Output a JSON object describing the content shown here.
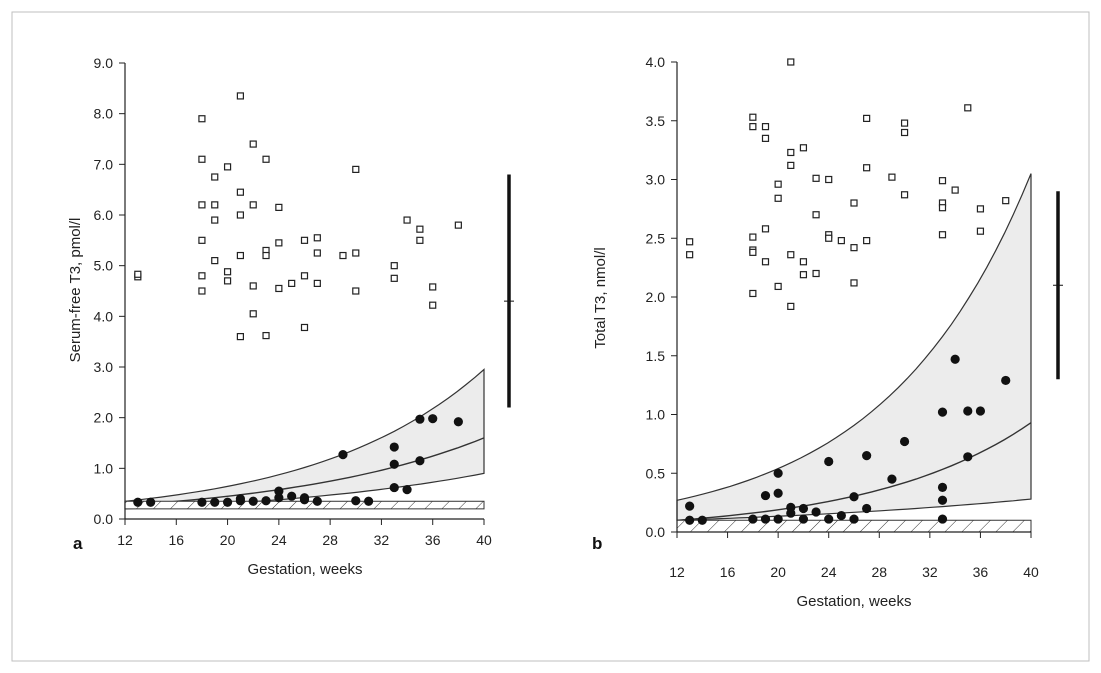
{
  "chart_data": [
    {
      "panel": "a",
      "type": "scatter",
      "xlabel": "Gestation, weeks",
      "ylabel": "Serum-free T3, pmol/l",
      "xlim": [
        12,
        40
      ],
      "ylim": [
        0,
        9
      ],
      "xticks": [
        "12",
        "16",
        "20",
        "24",
        "28",
        "32",
        "36",
        "40"
      ],
      "yticks": [
        "0.0",
        "1.0",
        "2.0",
        "3.0",
        "4.0",
        "5.0",
        "6.0",
        "7.0",
        "8.0",
        "9.0"
      ],
      "reference_range": {
        "low": 0.2,
        "high": 0.35
      },
      "envelope": {
        "upper_start": 0.35,
        "upper_end": 2.95,
        "lower_start": 0.2,
        "lower_end": 0.9,
        "mid_start": 0.27,
        "mid_end": 1.6
      },
      "adult_range_bar": {
        "low": 2.2,
        "high": 6.8,
        "mean": 4.3
      },
      "series": [
        {
          "marker": "open-square",
          "points": [
            [
              13,
              4.78
            ],
            [
              13,
              4.83
            ],
            [
              18,
              7.9
            ],
            [
              18,
              7.1
            ],
            [
              18,
              6.2
            ],
            [
              18,
              5.5
            ],
            [
              18,
              4.8
            ],
            [
              18,
              4.5
            ],
            [
              19,
              6.75
            ],
            [
              19,
              6.2
            ],
            [
              19,
              5.9
            ],
            [
              19,
              5.1
            ],
            [
              20,
              6.95
            ],
            [
              20,
              4.88
            ],
            [
              20,
              4.7
            ],
            [
              21,
              8.35
            ],
            [
              21,
              6.45
            ],
            [
              21,
              6.0
            ],
            [
              21,
              5.2
            ],
            [
              21,
              3.6
            ],
            [
              22,
              7.4
            ],
            [
              22,
              6.2
            ],
            [
              22,
              4.6
            ],
            [
              22,
              4.05
            ],
            [
              23,
              7.1
            ],
            [
              23,
              5.3
            ],
            [
              23,
              5.2
            ],
            [
              23,
              3.62
            ],
            [
              24,
              6.15
            ],
            [
              24,
              5.45
            ],
            [
              24,
              4.55
            ],
            [
              25,
              4.65
            ],
            [
              26,
              5.5
            ],
            [
              26,
              4.8
            ],
            [
              26,
              3.78
            ],
            [
              27,
              5.55
            ],
            [
              27,
              5.25
            ],
            [
              27,
              4.65
            ],
            [
              29,
              5.2
            ],
            [
              30,
              6.9
            ],
            [
              30,
              5.25
            ],
            [
              30,
              4.5
            ],
            [
              33,
              5.0
            ],
            [
              33,
              4.75
            ],
            [
              34,
              5.9
            ],
            [
              35,
              5.72
            ],
            [
              35,
              5.5
            ],
            [
              36,
              4.58
            ],
            [
              36,
              4.22
            ],
            [
              38,
              5.8
            ]
          ]
        },
        {
          "marker": "filled-circle",
          "points": [
            [
              13,
              0.33
            ],
            [
              14,
              0.33
            ],
            [
              18,
              0.33
            ],
            [
              19,
              0.33
            ],
            [
              20,
              0.33
            ],
            [
              21,
              0.36
            ],
            [
              21,
              0.4
            ],
            [
              22,
              0.35
            ],
            [
              23,
              0.36
            ],
            [
              24,
              0.42
            ],
            [
              24,
              0.55
            ],
            [
              25,
              0.45
            ],
            [
              26,
              0.38
            ],
            [
              26,
              0.42
            ],
            [
              27,
              0.35
            ],
            [
              29,
              1.27
            ],
            [
              30,
              0.36
            ],
            [
              31,
              0.35
            ],
            [
              33,
              1.42
            ],
            [
              33,
              1.08
            ],
            [
              33,
              0.62
            ],
            [
              34,
              0.58
            ],
            [
              35,
              1.97
            ],
            [
              35,
              1.15
            ],
            [
              36,
              1.98
            ],
            [
              38,
              1.92
            ]
          ]
        }
      ]
    },
    {
      "panel": "b",
      "type": "scatter",
      "xlabel": "Gestation, weeks",
      "ylabel": "Total T3, nmol/l",
      "xlim": [
        12,
        40
      ],
      "ylim": [
        0,
        4
      ],
      "xticks": [
        "12",
        "16",
        "20",
        "24",
        "28",
        "32",
        "36",
        "40"
      ],
      "yticks": [
        "0.0",
        "0.5",
        "1.0",
        "1.5",
        "2.0",
        "2.5",
        "3.0",
        "3.5",
        "4.0"
      ],
      "reference_range": {
        "low": 0.0,
        "high": 0.1
      },
      "envelope": {
        "upper_start": 0.27,
        "upper_end": 3.05,
        "lower_start": 0.1,
        "lower_end": 0.28,
        "mid_start": 0.1,
        "mid_end": 0.93
      },
      "adult_range_bar": {
        "low": 1.3,
        "high": 2.9,
        "mean": 2.1
      },
      "series": [
        {
          "marker": "open-square",
          "points": [
            [
              13,
              2.47
            ],
            [
              13,
              2.36
            ],
            [
              18,
              3.53
            ],
            [
              18,
              3.45
            ],
            [
              18,
              2.51
            ],
            [
              18,
              2.4
            ],
            [
              18,
              2.38
            ],
            [
              18,
              2.03
            ],
            [
              19,
              3.45
            ],
            [
              19,
              3.35
            ],
            [
              19,
              2.58
            ],
            [
              19,
              2.3
            ],
            [
              20,
              2.96
            ],
            [
              20,
              2.84
            ],
            [
              20,
              2.09
            ],
            [
              21,
              4.0
            ],
            [
              21,
              3.23
            ],
            [
              21,
              3.12
            ],
            [
              21,
              2.36
            ],
            [
              21,
              1.92
            ],
            [
              22,
              3.27
            ],
            [
              22,
              2.3
            ],
            [
              22,
              2.19
            ],
            [
              23,
              3.01
            ],
            [
              23,
              2.7
            ],
            [
              23,
              2.2
            ],
            [
              24,
              3.0
            ],
            [
              24,
              2.53
            ],
            [
              24,
              2.5
            ],
            [
              25,
              2.48
            ],
            [
              26,
              2.8
            ],
            [
              26,
              2.42
            ],
            [
              26,
              2.12
            ],
            [
              27,
              3.52
            ],
            [
              27,
              3.1
            ],
            [
              27,
              2.48
            ],
            [
              29,
              3.02
            ],
            [
              30,
              3.48
            ],
            [
              30,
              3.4
            ],
            [
              30,
              2.87
            ],
            [
              33,
              2.99
            ],
            [
              33,
              2.8
            ],
            [
              33,
              2.76
            ],
            [
              33,
              2.53
            ],
            [
              34,
              2.91
            ],
            [
              35,
              3.61
            ],
            [
              36,
              2.75
            ],
            [
              36,
              2.56
            ],
            [
              38,
              2.82
            ]
          ]
        },
        {
          "marker": "filled-circle",
          "points": [
            [
              13,
              0.22
            ],
            [
              13,
              0.1
            ],
            [
              14,
              0.1
            ],
            [
              18,
              0.11
            ],
            [
              19,
              0.31
            ],
            [
              19,
              0.11
            ],
            [
              20,
              0.5
            ],
            [
              20,
              0.33
            ],
            [
              20,
              0.11
            ],
            [
              21,
              0.21
            ],
            [
              21,
              0.16
            ],
            [
              22,
              0.2
            ],
            [
              22,
              0.11
            ],
            [
              23,
              0.17
            ],
            [
              24,
              0.6
            ],
            [
              24,
              0.11
            ],
            [
              25,
              0.14
            ],
            [
              26,
              0.3
            ],
            [
              26,
              0.11
            ],
            [
              27,
              0.65
            ],
            [
              27,
              0.2
            ],
            [
              29,
              0.45
            ],
            [
              30,
              0.77
            ],
            [
              33,
              1.02
            ],
            [
              33,
              0.38
            ],
            [
              33,
              0.27
            ],
            [
              33,
              0.11
            ],
            [
              34,
              1.47
            ],
            [
              35,
              1.03
            ],
            [
              35,
              0.64
            ],
            [
              36,
              1.03
            ],
            [
              38,
              1.29
            ]
          ]
        }
      ]
    }
  ]
}
